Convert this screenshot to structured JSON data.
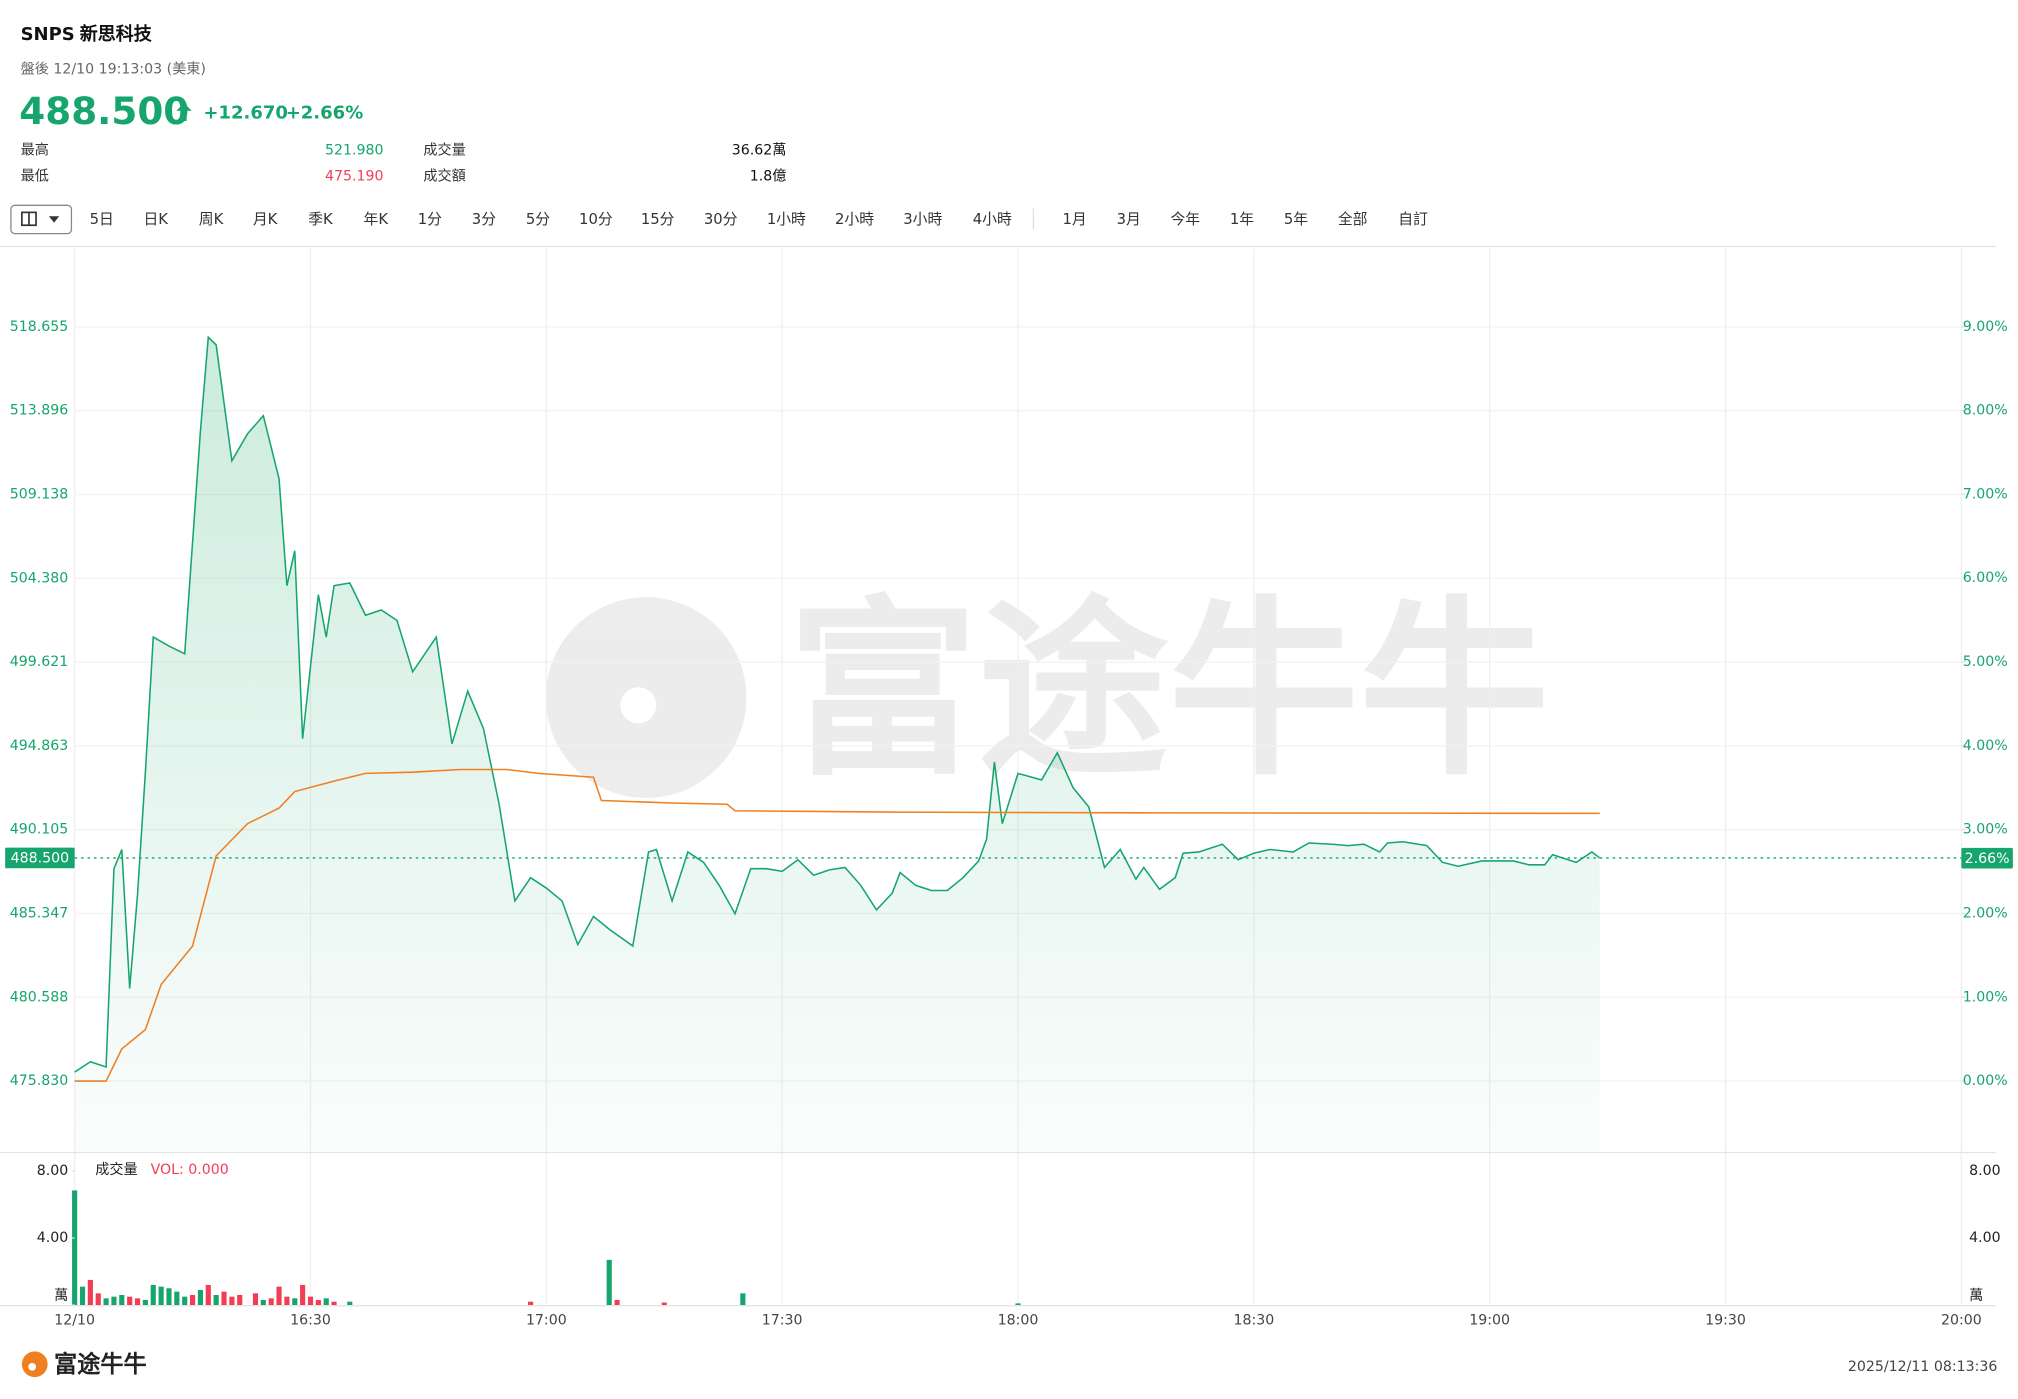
{
  "header": {
    "symbol": "SNPS",
    "name": "新思科技",
    "session": "盤後 12/10 19:13:03 (美東)",
    "price": "488.500",
    "change": "+12.670",
    "change_pct": "+2.66%",
    "stats": [
      {
        "label": "最高",
        "value": "521.980"
      },
      {
        "label": "最低",
        "value": "475.190"
      },
      {
        "label": "成交量",
        "value": "36.62萬"
      },
      {
        "label": "成交額",
        "value": "1.8億"
      }
    ]
  },
  "toolbar": [
    "5日",
    "日K",
    "周K",
    "月K",
    "季K",
    "年K",
    "1分",
    "3分",
    "5分",
    "10分",
    "15分",
    "30分",
    "1小時",
    "2小時",
    "3小時",
    "4小時",
    "1月",
    "3月",
    "今年",
    "1年",
    "5年",
    "全部",
    "自訂"
  ],
  "watermark": "富途牛牛",
  "footer": {
    "brand": "富途牛牛",
    "timestamp": "2025/12/11 08:13:36"
  },
  "chart_data": {
    "type": "line",
    "xlim": [
      "16:00",
      "20:00"
    ],
    "xticks": [
      {
        "value": "16:00",
        "label": "12/10"
      },
      "16:30",
      "17:00",
      "17:30",
      "18:00",
      "18:30",
      "19:00",
      "19:30",
      "20:00"
    ],
    "ylim": [
      471.81,
      523.11
    ],
    "yticks": [
      {
        "value": 475.83,
        "label": "475.830"
      },
      480.588,
      485.347,
      490.105,
      494.863,
      499.621,
      {
        "value": 504.38,
        "label": "504.380"
      },
      509.138,
      513.896,
      518.655
    ],
    "y2lim": [
      -0.845,
      9.936
    ],
    "y2ticks": [
      {
        "value": 0,
        "label": "0.00%"
      },
      {
        "value": 1,
        "label": "1.00%"
      },
      {
        "value": 2,
        "label": "2.00%"
      },
      {
        "value": 3,
        "label": "3.00%"
      },
      {
        "value": 4,
        "label": "4.00%"
      },
      {
        "value": 5,
        "label": "5.00%"
      },
      {
        "value": 6,
        "label": "6.00%"
      },
      {
        "value": 7,
        "label": "7.00%"
      },
      {
        "value": 8,
        "label": "8.00%"
      },
      {
        "value": 9,
        "label": "9.00%"
      }
    ],
    "grid": true,
    "series": [
      {
        "color": "#16a56c",
        "fill": true,
        "x": [
          "16:00",
          "16:02",
          "16:04",
          "16:05",
          "16:06",
          "16:07",
          "16:08",
          "16:09",
          "16:10",
          "16:12",
          "16:14",
          "16:16",
          "16:17",
          "16:18",
          "16:20",
          "16:22",
          "16:24",
          "16:26",
          "16:27",
          "16:28",
          "16:29",
          "16:31",
          "16:32",
          "16:33",
          "16:35",
          "16:37",
          "16:39",
          "16:41",
          "16:43",
          "16:46",
          "16:48",
          "16:50",
          "16:52",
          "16:54",
          "16:56",
          "16:58",
          "17:00",
          "17:02",
          "17:04",
          "17:06",
          "17:08",
          "17:11",
          "17:13",
          "17:14",
          "17:16",
          "17:18",
          "17:20",
          "17:22",
          "17:24",
          "17:26",
          "17:28",
          "17:30",
          "17:32",
          "17:34",
          "17:36",
          "17:38",
          "17:40",
          "17:42",
          "17:44",
          "17:45",
          "17:47",
          "17:49",
          "17:51",
          "17:53",
          "17:55",
          "17:56",
          "17:57",
          "17:58",
          "18:00",
          "18:03",
          "18:05",
          "18:07",
          "18:09",
          "18:11",
          "18:13",
          "18:15",
          "18:16",
          "18:18",
          "18:20",
          "18:21",
          "18:23",
          "18:26",
          "18:28",
          "18:30",
          "18:32",
          "18:35",
          "18:37",
          "18:40",
          "18:42",
          "18:44",
          "18:46",
          "18:47",
          "18:49",
          "18:52",
          "18:54",
          "18:56",
          "18:59",
          "19:01",
          "19:03",
          "19:05",
          "19:07",
          "19:08",
          "19:11",
          "19:13",
          "19:14"
        ],
        "values": [
          476.34,
          476.93,
          476.63,
          487.89,
          488.98,
          481.09,
          486.43,
          493.37,
          501.04,
          500.53,
          500.09,
          512.74,
          518.07,
          517.63,
          511.05,
          512.59,
          513.61,
          510.03,
          503.96,
          505.94,
          495.27,
          503.45,
          501.04,
          503.96,
          504.11,
          502.28,
          502.58,
          501.99,
          499.07,
          501.04,
          494.98,
          497.97,
          495.85,
          491.54,
          486.06,
          487.38,
          486.79,
          486.06,
          483.58,
          485.18,
          484.45,
          483.5,
          488.84,
          488.98,
          486.06,
          488.84,
          488.25,
          486.94,
          485.33,
          487.89,
          487.89,
          487.74,
          488.4,
          487.52,
          487.82,
          487.96,
          486.94,
          485.55,
          486.5,
          487.67,
          486.94,
          486.65,
          486.65,
          487.38,
          488.33,
          489.57,
          493.95,
          490.45,
          493.3,
          492.93,
          494.47,
          492.49,
          491.4,
          487.96,
          488.98,
          487.3,
          487.96,
          486.72,
          487.38,
          488.77,
          488.84,
          489.28,
          488.4,
          488.77,
          488.98,
          488.84,
          489.35,
          489.28,
          489.2,
          489.28,
          488.84,
          489.35,
          489.42,
          489.2,
          488.25,
          488.03,
          488.33,
          488.33,
          488.33,
          488.11,
          488.11,
          488.69,
          488.25,
          488.84,
          488.5
        ]
      },
      {
        "color": "#f07f22",
        "x": [
          "16:00",
          "16:04",
          "16:06",
          "16:09",
          "16:11",
          "16:15",
          "16:18",
          "16:22",
          "16:26",
          "16:28",
          "16:33",
          "16:37",
          "16:43",
          "16:49",
          "16:55",
          "16:59",
          "17:06",
          "17:07",
          "17:16",
          "17:23",
          "17:24",
          "17:45",
          "18:18",
          "19:14"
        ],
        "values": [
          475.83,
          475.83,
          477.66,
          478.75,
          481.31,
          483.5,
          488.62,
          490.45,
          491.33,
          492.27,
          492.86,
          493.3,
          493.37,
          493.52,
          493.52,
          493.3,
          493.08,
          491.76,
          491.62,
          491.55,
          491.18,
          491.1,
          491.06,
          491.03
        ]
      }
    ],
    "last_price": {
      "value": 488.5,
      "label": "488.500"
    },
    "last_change": {
      "value": 2.66,
      "label": "2.66%",
      "axis": "y2"
    },
    "volume": {
      "type": "bar",
      "title": "成交量",
      "indicator": "VOL: 0.000",
      "ylim": [
        0,
        8.77
      ],
      "yticks": [
        {
          "value": 0,
          "label": "萬"
        },
        {
          "value": 4,
          "label": "4.00"
        },
        {
          "value": 8,
          "label": "8.00"
        }
      ],
      "series": [
        {
          "color": "#16a56c",
          "x": [
            "16:00",
            "16:01",
            "16:04",
            "16:05",
            "16:06",
            "16:09",
            "16:10",
            "16:11",
            "16:12",
            "16:13",
            "16:14",
            "16:16",
            "16:18",
            "16:24",
            "16:28",
            "16:32",
            "16:35",
            "17:08",
            "17:25",
            "18:00"
          ],
          "values": [
            6.85,
            1.1,
            0.4,
            0.5,
            0.6,
            0.3,
            1.2,
            1.1,
            1.0,
            0.8,
            0.5,
            0.9,
            0.6,
            0.3,
            0.4,
            0.4,
            0.2,
            2.7,
            0.7,
            0.1
          ]
        },
        {
          "color": "#f23e55",
          "x": [
            "16:02",
            "16:03",
            "16:07",
            "16:08",
            "16:15",
            "16:17",
            "16:19",
            "16:20",
            "16:21",
            "16:23",
            "16:25",
            "16:26",
            "16:27",
            "16:29",
            "16:30",
            "16:31",
            "16:33",
            "16:58",
            "17:09",
            "17:15"
          ],
          "values": [
            1.5,
            0.7,
            0.5,
            0.4,
            0.6,
            1.2,
            0.8,
            0.5,
            0.6,
            0.7,
            0.4,
            1.1,
            0.5,
            1.2,
            0.5,
            0.3,
            0.2,
            0.2,
            0.3,
            0.15
          ]
        }
      ]
    }
  }
}
